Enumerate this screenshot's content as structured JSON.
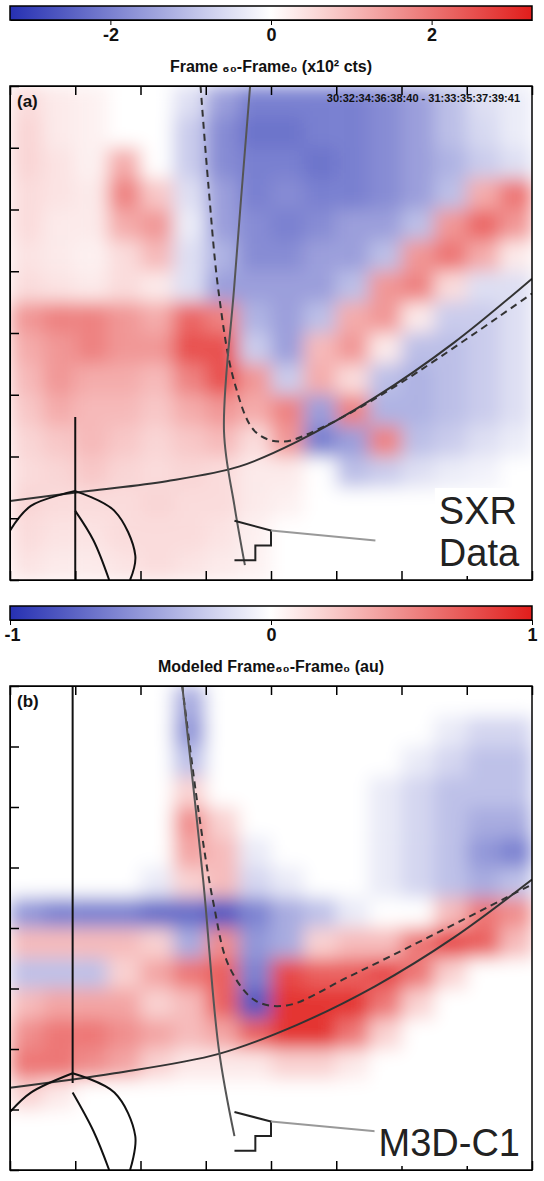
{
  "chart_data": [
    {
      "type": "heatmap",
      "panel_label": "(a)",
      "colorbar_label": "Frame ₆₀-Frame₀ (x10² cts)",
      "colorbar_range": [
        -3.25,
        3.25
      ],
      "colorbar_ticks": [
        -2,
        0,
        2
      ],
      "annotations": [
        "30:32:34:36:38:40 - 31:33:35:37:39:41",
        "SXR Data"
      ],
      "xlim": [
        0,
        16
      ],
      "ylim": [
        0,
        16
      ],
      "xticks": [
        0,
        2,
        4,
        6,
        8,
        10,
        12,
        14,
        16
      ],
      "yticks": [
        0,
        2,
        4,
        6,
        8,
        10,
        12,
        14,
        16
      ],
      "tick_labels": false,
      "cells": [
        [
          0.5,
          0.3,
          0.2,
          0,
          0,
          -0.5,
          -1.5,
          -2,
          -2,
          -2,
          -2,
          -1.8,
          -1.5,
          -1,
          -0.5,
          -0.3
        ],
        [
          0.6,
          0.3,
          0.2,
          0,
          0,
          -0.8,
          -1.8,
          -2.2,
          -2.2,
          -2,
          -2,
          -1.8,
          -1.5,
          -1,
          -0.6,
          -0.3
        ],
        [
          0.6,
          0.4,
          0.2,
          1.2,
          0,
          -0.8,
          -1.8,
          -2,
          -2,
          -2.2,
          -2,
          -1.8,
          -1.5,
          -1.2,
          -0.8,
          -0.5
        ],
        [
          0.5,
          0.4,
          0.3,
          1.8,
          0.8,
          -0.5,
          -1.5,
          -2,
          -1.8,
          -2,
          -2,
          -1.8,
          -1.5,
          -1,
          1.2,
          2
        ],
        [
          0.5,
          0.3,
          0.3,
          1.2,
          1.5,
          -0.3,
          -1.5,
          -1.8,
          -2,
          -1.8,
          -1.5,
          -1.5,
          -1,
          1.5,
          2.2,
          1.5
        ],
        [
          0.4,
          0.3,
          0.2,
          0.5,
          1,
          -0.5,
          -1.2,
          -1.8,
          -1.8,
          -1.5,
          -1.5,
          -1,
          1.5,
          2,
          1.2,
          0.3
        ],
        [
          0.5,
          0.4,
          0.3,
          0.5,
          0.3,
          -0.5,
          -1.5,
          -1.5,
          -1.5,
          -1.5,
          -1,
          1.5,
          1.8,
          0.5,
          -0.5,
          -0.5
        ],
        [
          1.5,
          1.8,
          1.8,
          1.5,
          1.2,
          2.2,
          1.8,
          -1.2,
          -1.5,
          -1,
          1.2,
          1.5,
          0.3,
          -0.8,
          -0.8,
          -0.5
        ],
        [
          1.2,
          1.5,
          1.8,
          1.5,
          1.5,
          2.5,
          2.5,
          -0.8,
          -1.5,
          1,
          1.5,
          0.3,
          -1,
          -1,
          -0.8,
          -0.5
        ],
        [
          1,
          1.5,
          1.2,
          1.2,
          1,
          1.8,
          2.5,
          1.5,
          -0.8,
          1.2,
          0.5,
          -1,
          -1.2,
          -1,
          -0.8,
          -0.5
        ],
        [
          0.8,
          1.2,
          1,
          1,
          0.8,
          1.2,
          1.5,
          1.2,
          1.8,
          -1.5,
          1.8,
          -1.2,
          -1.2,
          -1,
          -0.8,
          -0.5
        ],
        [
          0.6,
          0.8,
          1,
          0.8,
          0.6,
          0.8,
          1,
          0.5,
          1.5,
          -2,
          -1.5,
          1.8,
          -1,
          -0.8,
          -0.5,
          -0.3
        ],
        [
          0.5,
          0.6,
          0.8,
          0.6,
          0.5,
          0.6,
          0.5,
          0.3,
          0.3,
          0,
          -1,
          -0.8,
          -0.5,
          -0.3,
          -0.2,
          0
        ],
        [
          0.6,
          0.5,
          0.5,
          0.5,
          0.6,
          0.5,
          0.5,
          0.3,
          0.2,
          0,
          0,
          0,
          0,
          0,
          0,
          0
        ],
        [
          0.5,
          0.4,
          0.4,
          0.5,
          0.5,
          0.5,
          0.4,
          0.2,
          0,
          0,
          0,
          0,
          0,
          0,
          0,
          0
        ],
        [
          0.4,
          0.3,
          0.3,
          0.4,
          0.5,
          0.4,
          0.3,
          0.2,
          0,
          0,
          0,
          0,
          0,
          0,
          0,
          0
        ]
      ]
    },
    {
      "type": "heatmap",
      "panel_label": "(b)",
      "colorbar_label": "Modeled Frame₆₀-Frame₀ (au)",
      "colorbar_range": [
        -1,
        1
      ],
      "colorbar_ticks": [
        -1,
        0,
        1
      ],
      "annotations": [
        "M3D-C1"
      ],
      "xlim": [
        0,
        16
      ],
      "ylim": [
        0,
        16
      ],
      "xticks": [
        0,
        2,
        4,
        6,
        8,
        10,
        12,
        14,
        16
      ],
      "yticks": [
        0,
        2,
        4,
        6,
        8,
        10,
        12,
        14,
        16
      ],
      "tick_labels": false,
      "cells": [
        [
          0,
          0,
          0,
          0,
          0,
          -0.4,
          0,
          0,
          0,
          0,
          0,
          0,
          0,
          0,
          0,
          0
        ],
        [
          0,
          0,
          0,
          0,
          0,
          -0.5,
          0,
          0,
          0,
          0,
          0,
          0,
          0,
          -0.1,
          -0.2,
          -0.2
        ],
        [
          0,
          0,
          0,
          0,
          0,
          -0.3,
          0,
          0,
          0,
          0,
          0,
          0,
          -0.1,
          -0.2,
          -0.3,
          -0.3
        ],
        [
          0,
          0,
          0,
          0,
          0,
          0.2,
          0,
          0,
          0,
          0,
          0,
          -0.1,
          -0.2,
          -0.3,
          -0.3,
          -0.3
        ],
        [
          0,
          0,
          0,
          0,
          0,
          0.5,
          0.2,
          0,
          0,
          0,
          0,
          -0.1,
          -0.2,
          -0.3,
          -0.4,
          -0.4
        ],
        [
          0,
          0,
          0,
          0,
          0,
          0.4,
          0.3,
          -0.1,
          0,
          0,
          0,
          -0.1,
          -0.2,
          -0.3,
          -0.5,
          -0.6
        ],
        [
          0,
          0,
          0,
          0,
          -0.1,
          0.2,
          0.3,
          -0.2,
          -0.1,
          0,
          0,
          -0.1,
          -0.2,
          -0.3,
          -0.4,
          -0.3
        ],
        [
          -0.5,
          -0.6,
          -0.6,
          -0.6,
          -0.7,
          -0.7,
          -0.8,
          -0.6,
          -0.4,
          -0.3,
          -0.1,
          0,
          0,
          0.3,
          0.6,
          0.5
        ],
        [
          0.3,
          0.3,
          0.3,
          0.3,
          0.2,
          -0.4,
          0.5,
          -0.5,
          -0.4,
          0.2,
          0.3,
          0.3,
          0.6,
          0.8,
          0.7,
          0.3
        ],
        [
          -0.3,
          -0.3,
          -0.3,
          0.2,
          0.4,
          0.6,
          0.7,
          -0.6,
          0.8,
          0.7,
          0.7,
          0.8,
          0.6,
          0.2,
          0,
          0
        ],
        [
          0.3,
          0.4,
          0.4,
          0.4,
          0.2,
          0.3,
          0.7,
          -0.8,
          0.9,
          0.9,
          0.9,
          0.6,
          0.2,
          0,
          0,
          0
        ],
        [
          0.5,
          0.6,
          0.6,
          0.5,
          0.4,
          0.3,
          0.4,
          0.7,
          0.9,
          0.9,
          0.6,
          0.2,
          0,
          0,
          0,
          0
        ],
        [
          0.6,
          0.6,
          0.5,
          0.4,
          0.2,
          0.1,
          0.1,
          0.1,
          0.2,
          0.2,
          0.1,
          0,
          0,
          0,
          0,
          0
        ],
        [
          0.2,
          0.1,
          0,
          0,
          0,
          0,
          0,
          0,
          0,
          0,
          0,
          0,
          0,
          0,
          0,
          0
        ],
        [
          0,
          0,
          0,
          0,
          0,
          0,
          0,
          0,
          0,
          0,
          0,
          0,
          0,
          0,
          0,
          0
        ],
        [
          0,
          0,
          0,
          0,
          0,
          0,
          0,
          0,
          0,
          0,
          0,
          0,
          0,
          0,
          0,
          0
        ]
      ]
    }
  ]
}
